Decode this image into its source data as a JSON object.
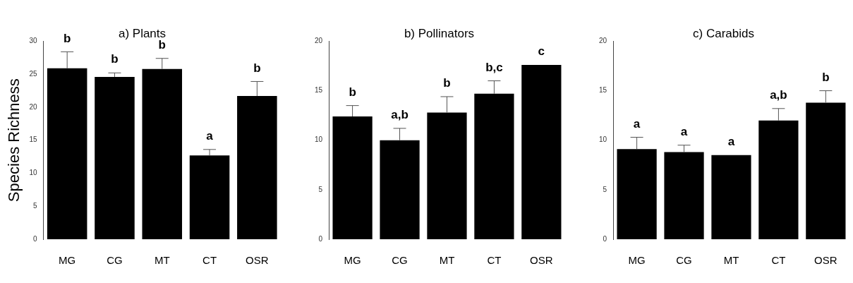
{
  "chart_data": [
    {
      "type": "bar",
      "title": "a) Plants",
      "ylabel": "Species Richness",
      "categories": [
        "MG",
        "CG",
        "MT",
        "CT",
        "OSR"
      ],
      "color": "#000000",
      "values": [
        25.9,
        24.6,
        25.8,
        12.7,
        21.7
      ],
      "errors": [
        [
          25.9,
          28.4
        ],
        [
          24.6,
          25.2
        ],
        [
          25.8,
          27.4
        ],
        [
          12.7,
          13.6
        ],
        [
          21.7,
          23.9
        ]
      ],
      "ylim": [
        0,
        30
      ],
      "yticks": [
        0,
        5,
        10,
        15,
        20,
        25,
        30
      ],
      "grid": false,
      "legend": false,
      "annotations": [
        {
          "text": "b",
          "x": "MG",
          "y": 28.4
        },
        {
          "text": "b",
          "x": "CG",
          "y": 25.2
        },
        {
          "text": "b",
          "x": "MT",
          "y": 27.4
        },
        {
          "text": "a",
          "x": "CT",
          "y": 13.6
        },
        {
          "text": "b",
          "x": "OSR",
          "y": 23.9
        }
      ]
    },
    {
      "type": "bar",
      "title": "b) Pollinators",
      "categories": [
        "MG",
        "CG",
        "MT",
        "CT",
        "OSR"
      ],
      "color": "#000000",
      "values": [
        12.4,
        10.0,
        12.8,
        14.7,
        17.6
      ],
      "errors": [
        [
          12.4,
          13.5
        ],
        [
          10.0,
          11.2
        ],
        [
          12.8,
          14.4
        ],
        [
          14.7,
          16.0
        ],
        null
      ],
      "ylim": [
        0,
        20
      ],
      "yticks": [
        0,
        5,
        10,
        15,
        20
      ],
      "grid": false,
      "legend": false,
      "annotations": [
        {
          "text": "b",
          "x": "MG",
          "y": 13.5
        },
        {
          "text": "a,b",
          "x": "CG",
          "y": 11.2
        },
        {
          "text": "b",
          "x": "MT",
          "y": 14.4
        },
        {
          "text": "b,c",
          "x": "CT",
          "y": 16.0
        },
        {
          "text": "c",
          "x": "OSR",
          "y": 17.6
        }
      ]
    },
    {
      "type": "bar",
      "title": "c) Carabids",
      "categories": [
        "MG",
        "CG",
        "MT",
        "CT",
        "OSR"
      ],
      "color": "#000000",
      "values": [
        9.1,
        8.8,
        8.5,
        12.0,
        13.8
      ],
      "errors": [
        [
          9.1,
          10.3
        ],
        [
          8.8,
          9.5
        ],
        null,
        [
          12.0,
          13.2
        ],
        [
          13.8,
          15.0
        ]
      ],
      "ylim": [
        0,
        20
      ],
      "yticks": [
        0,
        5,
        10,
        15,
        20
      ],
      "grid": false,
      "legend": false,
      "annotations": [
        {
          "text": "a",
          "x": "MG",
          "y": 10.3
        },
        {
          "text": "a",
          "x": "CG",
          "y": 9.5
        },
        {
          "text": "a",
          "x": "MT",
          "y": 8.5
        },
        {
          "text": "a,b",
          "x": "CT",
          "y": 13.2
        },
        {
          "text": "b",
          "x": "OSR",
          "y": 15.0
        }
      ]
    }
  ]
}
